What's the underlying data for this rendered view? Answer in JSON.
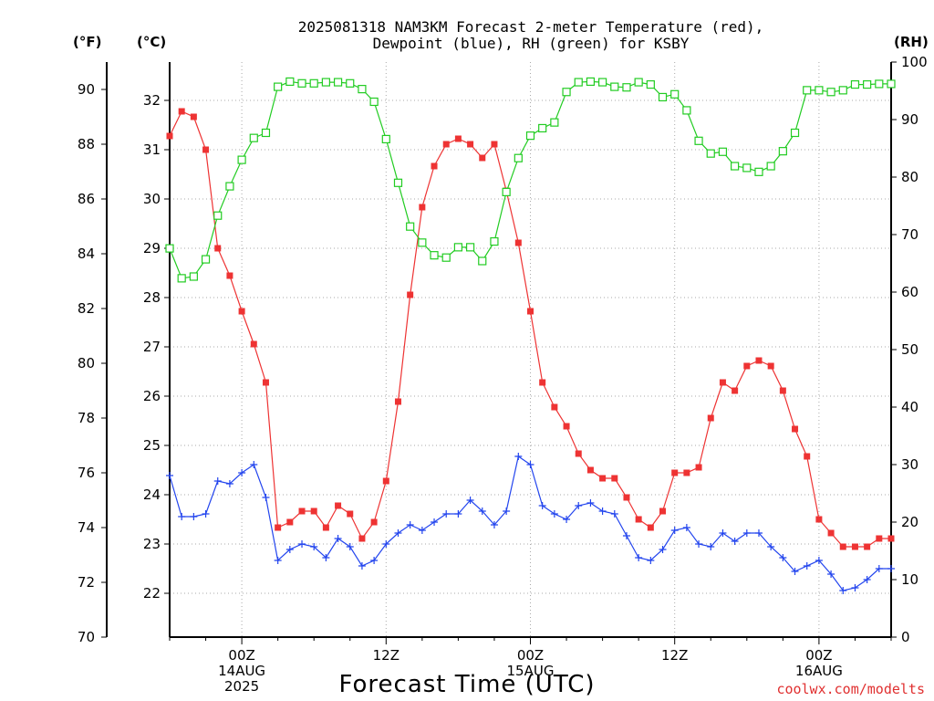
{
  "chart_data": {
    "type": "line",
    "title_lines": [
      "2025081318 NAM3KM Forecast 2-meter Temperature (red),",
      "Dewpoint (blue), RH (green) for KSBY"
    ],
    "xlabel": "Forecast Time (UTC)",
    "credit": "coolwx.com/modelts",
    "unit_labels": {
      "fahrenheit": "(°F)",
      "celsius": "(°C)",
      "rh": "(RH)"
    },
    "x_tick_labels": [
      {
        "hour": 6,
        "lines": [
          "00Z",
          "14AUG",
          "2025"
        ]
      },
      {
        "hour": 18,
        "lines": [
          "12Z"
        ]
      },
      {
        "hour": 30,
        "lines": [
          "00Z",
          "15AUG"
        ]
      },
      {
        "hour": 42,
        "lines": [
          "12Z"
        ]
      },
      {
        "hour": 54,
        "lines": [
          "00Z",
          "16AUG"
        ]
      }
    ],
    "x_hours_range": [
      0,
      60
    ],
    "y_left_F": {
      "range": [
        70,
        91
      ],
      "ticks": [
        70,
        72,
        74,
        76,
        78,
        80,
        82,
        84,
        86,
        88,
        90
      ]
    },
    "y_left_C": {
      "range": [
        21.11,
        32.78
      ],
      "ticks": [
        22,
        23,
        24,
        25,
        26,
        27,
        28,
        29,
        30,
        31,
        32
      ]
    },
    "y_right_RH": {
      "range": [
        0,
        100
      ],
      "ticks": [
        0,
        10,
        20,
        30,
        40,
        50,
        60,
        70,
        80,
        90,
        100
      ]
    },
    "grid": true,
    "series": [
      {
        "name": "2-meter Temperature (red)",
        "color": "#ee3333",
        "marker": "filled-square",
        "axis": "F",
        "hours": [
          0,
          1,
          2,
          3,
          4,
          5,
          6,
          7,
          8,
          9,
          10,
          11,
          12,
          13,
          14,
          15,
          16,
          17,
          18,
          19,
          20,
          21,
          22,
          23,
          24,
          25,
          26,
          27,
          28,
          29,
          30,
          31,
          32,
          33,
          34,
          35,
          36,
          37,
          38,
          39,
          40,
          41,
          42,
          43,
          44,
          45,
          46,
          47,
          48,
          49,
          50,
          51,
          52,
          53,
          54,
          55,
          56,
          57,
          58,
          59,
          60
        ],
        "values": [
          88.3,
          89.2,
          89.0,
          87.8,
          84.2,
          83.2,
          81.9,
          80.7,
          79.3,
          74.0,
          74.2,
          74.6,
          74.6,
          74.0,
          74.8,
          74.5,
          73.6,
          74.2,
          75.7,
          78.6,
          82.5,
          85.7,
          87.2,
          88.0,
          88.2,
          88.0,
          87.5,
          88.0,
          86.3,
          84.4,
          81.9,
          79.3,
          78.4,
          77.7,
          76.7,
          76.1,
          75.8,
          75.8,
          75.1,
          74.3,
          74.0,
          74.6,
          76.0,
          76.0,
          76.2,
          78.0,
          79.3,
          79.0,
          79.9,
          80.1,
          79.9,
          79.0,
          77.6,
          76.6,
          74.3,
          73.8,
          73.3,
          73.3,
          73.3,
          73.6,
          73.6
        ]
      },
      {
        "name": "Dewpoint (blue)",
        "color": "#2244ee",
        "marker": "plus",
        "axis": "F",
        "hours": [
          0,
          1,
          2,
          3,
          4,
          5,
          6,
          7,
          8,
          9,
          10,
          11,
          12,
          13,
          14,
          15,
          16,
          17,
          18,
          19,
          20,
          21,
          22,
          23,
          24,
          25,
          26,
          27,
          28,
          29,
          30,
          31,
          32,
          33,
          34,
          35,
          36,
          37,
          38,
          39,
          40,
          41,
          42,
          43,
          44,
          45,
          46,
          47,
          48,
          49,
          50,
          51,
          52,
          53,
          54,
          55,
          56,
          57,
          58,
          59,
          60
        ],
        "values": [
          75.9,
          74.4,
          74.4,
          74.5,
          75.7,
          75.6,
          76.0,
          76.3,
          75.1,
          72.8,
          73.2,
          73.4,
          73.3,
          72.9,
          73.6,
          73.3,
          72.6,
          72.8,
          73.4,
          73.8,
          74.1,
          73.9,
          74.2,
          74.5,
          74.5,
          75.0,
          74.6,
          74.1,
          74.6,
          76.6,
          76.3,
          74.8,
          74.5,
          74.3,
          74.8,
          74.9,
          74.6,
          74.5,
          73.7,
          72.9,
          72.8,
          73.2,
          73.9,
          74.0,
          73.4,
          73.3,
          73.8,
          73.5,
          73.8,
          73.8,
          73.3,
          72.9,
          72.4,
          72.6,
          72.8,
          72.3,
          71.7,
          71.8,
          72.1,
          72.5,
          72.5
        ]
      },
      {
        "name": "RH (green)",
        "color": "#22cc22",
        "marker": "open-square",
        "axis": "RH",
        "hours": [
          0,
          1,
          2,
          3,
          4,
          5,
          6,
          7,
          8,
          9,
          10,
          11,
          12,
          13,
          14,
          15,
          16,
          17,
          18,
          19,
          20,
          21,
          22,
          23,
          24,
          25,
          26,
          27,
          28,
          29,
          30,
          31,
          32,
          33,
          34,
          35,
          36,
          37,
          38,
          39,
          40,
          41,
          42,
          43,
          44,
          45,
          46,
          47,
          48,
          49,
          50,
          51,
          52,
          53,
          54,
          55,
          56,
          57,
          58,
          59,
          60
        ],
        "values": [
          67.6,
          62.4,
          62.7,
          65.7,
          73.3,
          78.4,
          83.0,
          86.8,
          87.7,
          95.7,
          96.6,
          96.3,
          96.3,
          96.5,
          96.5,
          96.3,
          95.3,
          93.1,
          86.6,
          79.0,
          71.4,
          68.6,
          66.4,
          66.0,
          67.8,
          67.8,
          65.4,
          68.8,
          77.4,
          83.3,
          87.2,
          88.5,
          89.5,
          94.8,
          96.5,
          96.6,
          96.5,
          95.7,
          95.6,
          96.5,
          96.1,
          93.9,
          94.4,
          91.6,
          86.3,
          84.1,
          84.4,
          81.9,
          81.6,
          80.9,
          81.9,
          84.5,
          87.7,
          95.1,
          95.1,
          94.8,
          95.1,
          96.1,
          96.1,
          96.2,
          96.2
        ]
      }
    ]
  }
}
